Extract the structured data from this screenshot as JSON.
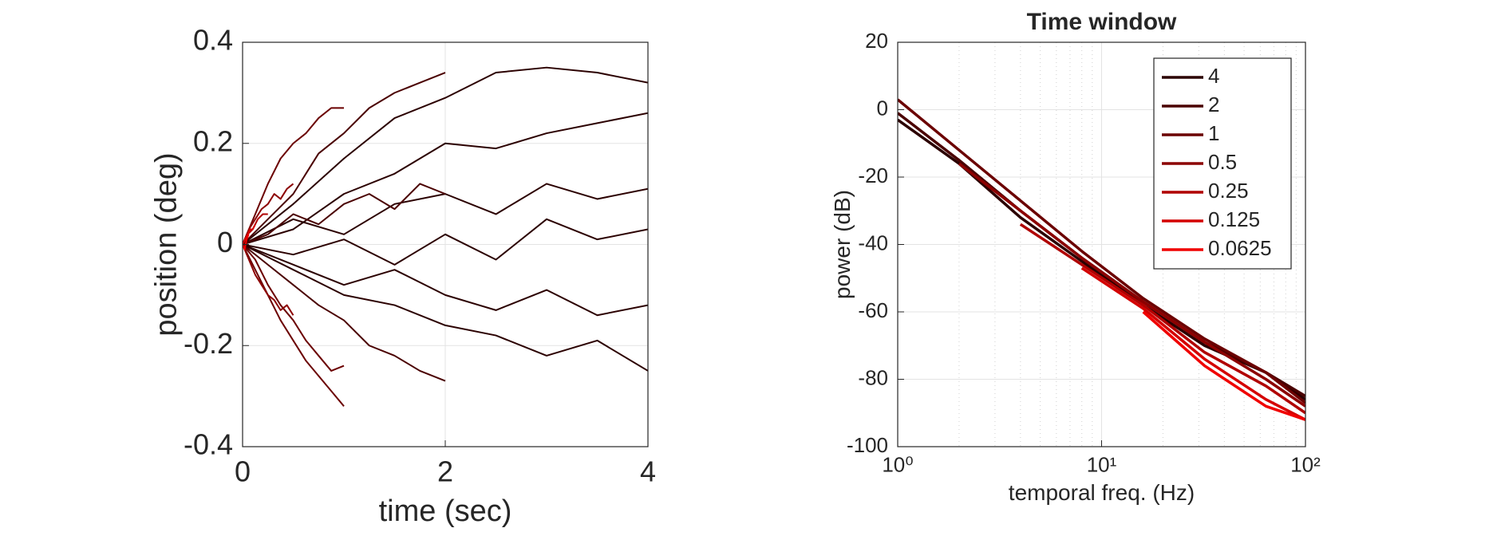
{
  "chart_data": [
    {
      "type": "line",
      "xlabel": "time (sec)",
      "ylabel": "position (deg)",
      "xlim": [
        0,
        4
      ],
      "ylim": [
        -0.4,
        0.4
      ],
      "xticks": [
        0,
        2,
        4
      ],
      "yticks": [
        -0.4,
        -0.2,
        0,
        0.2,
        0.4
      ],
      "grid": true,
      "series": [
        {
          "color": "#2b0000",
          "x": [
            0,
            0.5,
            1,
            1.5,
            2,
            2.5,
            3,
            3.5,
            4
          ],
          "values": [
            0,
            0.08,
            0.17,
            0.25,
            0.29,
            0.34,
            0.35,
            0.34,
            0.32
          ]
        },
        {
          "color": "#2b0000",
          "x": [
            0,
            0.5,
            1,
            1.5,
            2,
            2.5,
            3,
            3.5,
            4
          ],
          "values": [
            0,
            -0.05,
            -0.1,
            -0.12,
            -0.16,
            -0.18,
            -0.22,
            -0.19,
            -0.25
          ]
        },
        {
          "color": "#2b0000",
          "x": [
            0,
            0.5,
            1,
            1.5,
            2,
            2.5,
            3,
            3.5,
            4
          ],
          "values": [
            0,
            0.03,
            0.1,
            0.14,
            0.2,
            0.19,
            0.22,
            0.24,
            0.26
          ]
        },
        {
          "color": "#2b0000",
          "x": [
            0,
            0.5,
            1,
            1.5,
            2,
            2.5,
            3,
            3.5,
            4
          ],
          "values": [
            0,
            -0.02,
            0.01,
            -0.04,
            0.02,
            -0.03,
            0.05,
            0.01,
            0.03
          ]
        },
        {
          "color": "#2b0000",
          "x": [
            0,
            0.5,
            1,
            1.5,
            2,
            2.5,
            3,
            3.5,
            4
          ],
          "values": [
            0,
            0.05,
            0.02,
            0.08,
            0.1,
            0.06,
            0.12,
            0.09,
            0.11
          ]
        },
        {
          "color": "#2b0000",
          "x": [
            0,
            0.5,
            1,
            1.5,
            2,
            2.5,
            3,
            3.5,
            4
          ],
          "values": [
            0,
            -0.04,
            -0.08,
            -0.05,
            -0.1,
            -0.13,
            -0.09,
            -0.14,
            -0.12
          ]
        },
        {
          "color": "#4a0000",
          "x": [
            0,
            0.25,
            0.5,
            0.75,
            1,
            1.25,
            1.5,
            1.75,
            2
          ],
          "values": [
            0,
            0.05,
            0.1,
            0.18,
            0.22,
            0.27,
            0.3,
            0.32,
            0.34
          ]
        },
        {
          "color": "#4a0000",
          "x": [
            0,
            0.25,
            0.5,
            0.75,
            1,
            1.25,
            1.5,
            1.75,
            2
          ],
          "values": [
            0,
            -0.04,
            -0.08,
            -0.12,
            -0.15,
            -0.2,
            -0.22,
            -0.25,
            -0.27
          ]
        },
        {
          "color": "#4a0000",
          "x": [
            0,
            0.25,
            0.5,
            0.75,
            1,
            1.25,
            1.5,
            1.75,
            2
          ],
          "values": [
            0,
            0.02,
            0.06,
            0.04,
            0.08,
            0.1,
            0.07,
            0.12,
            0.1
          ]
        },
        {
          "color": "#6b0000",
          "x": [
            0,
            0.125,
            0.25,
            0.375,
            0.5,
            0.625,
            0.75,
            0.875,
            1
          ],
          "values": [
            0,
            0.06,
            0.12,
            0.17,
            0.2,
            0.22,
            0.25,
            0.27,
            0.27
          ]
        },
        {
          "color": "#6b0000",
          "x": [
            0,
            0.125,
            0.25,
            0.375,
            0.5,
            0.625,
            0.75,
            0.875,
            1
          ],
          "values": [
            0,
            -0.05,
            -0.1,
            -0.15,
            -0.19,
            -0.23,
            -0.26,
            -0.29,
            -0.32
          ]
        },
        {
          "color": "#6b0000",
          "x": [
            0,
            0.125,
            0.25,
            0.375,
            0.5,
            0.625,
            0.75,
            0.875,
            1
          ],
          "values": [
            0,
            -0.03,
            -0.08,
            -0.12,
            -0.15,
            -0.19,
            -0.22,
            -0.25,
            -0.24
          ]
        },
        {
          "color": "#8c0000",
          "x": [
            0,
            0.0625,
            0.125,
            0.1875,
            0.25,
            0.3125,
            0.375,
            0.4375,
            0.5
          ],
          "values": [
            0,
            0.03,
            0.05,
            0.07,
            0.08,
            0.1,
            0.09,
            0.11,
            0.12
          ]
        },
        {
          "color": "#8c0000",
          "x": [
            0,
            0.0625,
            0.125,
            0.1875,
            0.25,
            0.3125,
            0.375,
            0.4375,
            0.5
          ],
          "values": [
            0,
            -0.03,
            -0.06,
            -0.08,
            -0.1,
            -0.11,
            -0.13,
            -0.12,
            -0.14
          ]
        },
        {
          "color": "#b00000",
          "x": [
            0,
            0.05,
            0.1,
            0.15,
            0.2,
            0.25
          ],
          "values": [
            0,
            0.02,
            0.03,
            0.05,
            0.06,
            0.06
          ]
        },
        {
          "color": "#d40000",
          "x": [
            0,
            0.025,
            0.05,
            0.075,
            0.1,
            0.125
          ],
          "values": [
            0,
            0.01,
            0.02,
            0.03,
            0.03,
            0.04
          ]
        },
        {
          "color": "#f00000",
          "x": [
            0,
            0.02,
            0.04,
            0.06
          ],
          "values": [
            0,
            -0.01,
            0.01,
            0.02
          ]
        }
      ]
    },
    {
      "type": "line",
      "title": "Time window",
      "xlabel": "temporal freq. (Hz)",
      "ylabel": "power (dB)",
      "xscale": "log",
      "xlim": [
        1,
        100
      ],
      "ylim": [
        -100,
        20
      ],
      "xticks": [
        {
          "value": 1,
          "label": "10⁰"
        },
        {
          "value": 10,
          "label": "10¹"
        },
        {
          "value": 100,
          "label": "10²"
        }
      ],
      "xminorticks": [
        2,
        3,
        4,
        5,
        6,
        7,
        8,
        9,
        20,
        30,
        40,
        50,
        60,
        70,
        80,
        90
      ],
      "yticks": [
        -100,
        -80,
        -60,
        -40,
        -20,
        0,
        20
      ],
      "grid": true,
      "legend": "upper right",
      "series": [
        {
          "name": "4",
          "color": "#2b0000",
          "x": [
            1,
            2,
            4,
            8,
            16,
            32,
            64,
            100
          ],
          "values": [
            -3,
            -16,
            -32,
            -45,
            -58,
            -70,
            -78,
            -86
          ]
        },
        {
          "name": "2",
          "color": "#4a0000",
          "x": [
            1,
            2,
            4,
            8,
            16,
            32,
            64,
            100
          ],
          "values": [
            -1,
            -15,
            -30,
            -44,
            -57,
            -69,
            -78,
            -85
          ]
        },
        {
          "name": "1",
          "color": "#6b0000",
          "x": [
            1,
            2,
            4,
            8,
            16,
            32,
            64,
            100
          ],
          "values": [
            3,
            -12,
            -27,
            -42,
            -56,
            -68,
            -78,
            -87
          ]
        },
        {
          "name": "0.5",
          "color": "#8c0000",
          "x": [
            2,
            4,
            8,
            16,
            32,
            64,
            100
          ],
          "values": [
            -16,
            -30,
            -44,
            -57,
            -69,
            -80,
            -88
          ]
        },
        {
          "name": "0.25",
          "color": "#b00000",
          "x": [
            4,
            8,
            16,
            32,
            64,
            100
          ],
          "values": [
            -34,
            -46,
            -58,
            -72,
            -82,
            -90
          ]
        },
        {
          "name": "0.125",
          "color": "#d40000",
          "x": [
            8,
            16,
            32,
            64,
            100
          ],
          "values": [
            -47,
            -59,
            -74,
            -86,
            -92
          ]
        },
        {
          "name": "0.0625",
          "color": "#f00000",
          "x": [
            16,
            32,
            64,
            100
          ],
          "values": [
            -60,
            -76,
            -88,
            -92
          ]
        }
      ]
    }
  ]
}
